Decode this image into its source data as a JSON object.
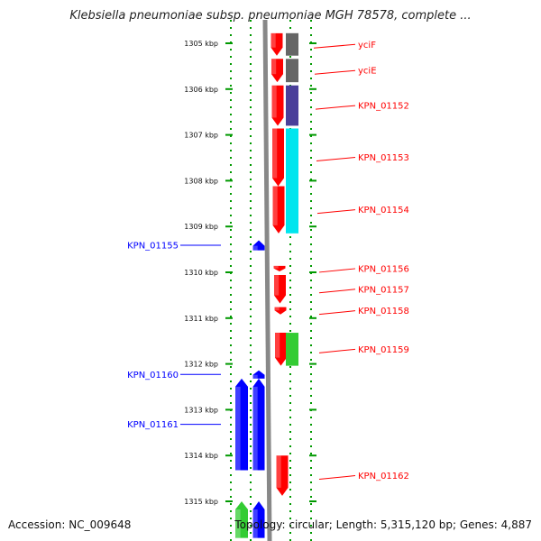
{
  "title": "Klebsiella pneumoniae subsp. pneumoniae MGH 78578, complete ...",
  "accession": "Accession: NC_009648",
  "meta": "Topology: circular; Length: 5,315,120 bp; Genes: 4,887",
  "ticks": [
    "1305 kbp",
    "1306 kbp",
    "1307 kbp",
    "1308 kbp",
    "1309 kbp",
    "1310 kbp",
    "1311 kbp",
    "1312 kbp",
    "1313 kbp",
    "1314 kbp",
    "1315 kbp"
  ],
  "colors": {
    "red": "#ff0000",
    "blue": "#0000ff",
    "grey": "#666666",
    "purple": "#4a3f9a",
    "cyan": "#00e5ee",
    "green": "#33cc33",
    "dots": "#009900",
    "backbone": "#888888"
  },
  "genes": [
    {
      "label": "yciF",
      "strand": "plus",
      "start": 1304.78,
      "end": 1305.27,
      "ref_color": "grey"
    },
    {
      "label": "yciE",
      "strand": "plus",
      "start": 1305.34,
      "end": 1305.85,
      "ref_color": "grey"
    },
    {
      "label": "KPN_01152",
      "strand": "plus",
      "start": 1305.92,
      "end": 1306.8,
      "ref_color": "purple"
    },
    {
      "label": "KPN_01153",
      "strand": "plus",
      "start": 1306.86,
      "end": 1308.12,
      "ref_color": "cyan"
    },
    {
      "label": "KPN_01154",
      "strand": "plus",
      "start": 1308.12,
      "end": 1309.15,
      "ref_color": "cyan"
    },
    {
      "label": "KPN_01155",
      "strand": "minus",
      "start": 1309.3,
      "end": 1309.52,
      "ref_color": ""
    },
    {
      "label": "KPN_01156",
      "strand": "plus",
      "start": 1309.86,
      "end": 1309.98,
      "ref_color": ""
    },
    {
      "label": "KPN_01157",
      "strand": "plus",
      "start": 1310.06,
      "end": 1310.68,
      "ref_color": ""
    },
    {
      "label": "KPN_01158",
      "strand": "plus",
      "start": 1310.76,
      "end": 1310.92,
      "ref_color": ""
    },
    {
      "label": "KPN_01159",
      "strand": "plus",
      "start": 1311.32,
      "end": 1312.04,
      "ref_color": "green"
    },
    {
      "label": "KPN_01160",
      "strand": "minus",
      "start": 1312.14,
      "end": 1312.32,
      "ref_color": ""
    },
    {
      "label": "KPN_01161",
      "strand": "minus",
      "start": 1312.32,
      "end": 1314.32,
      "ref_color": "blue"
    },
    {
      "label": "KPN_01162",
      "strand": "plus",
      "start": 1314.0,
      "end": 1314.88,
      "ref_color": ""
    },
    {
      "label": "",
      "strand": "minus",
      "start": 1315.0,
      "end": 1315.8,
      "ref_color": "green"
    }
  ]
}
